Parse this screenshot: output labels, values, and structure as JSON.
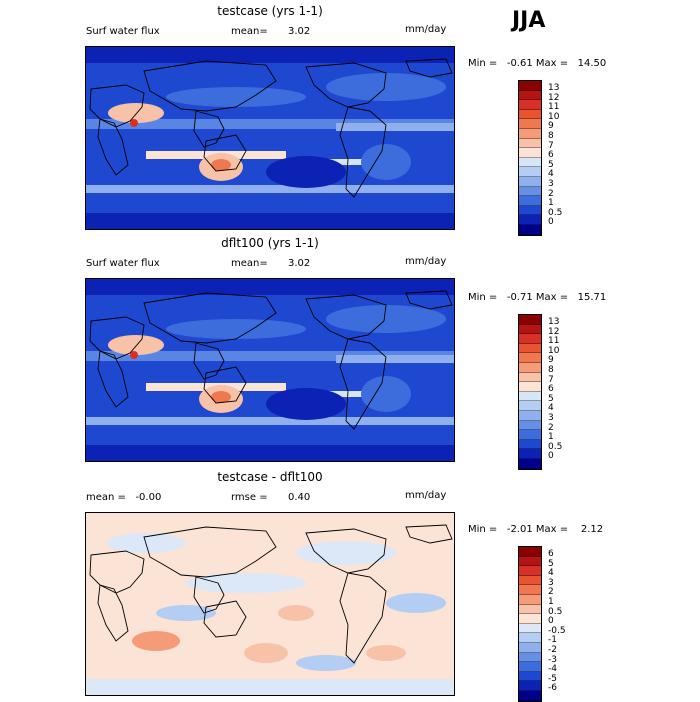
{
  "season": "JJA",
  "panels": [
    {
      "title": "testcase (yrs 1-1)",
      "variable": "Surf water flux",
      "mean_label": "mean=",
      "mean_value": "3.02",
      "units": "mm/day",
      "minmax": "Min =   -0.61 Max =   14.50",
      "colorbar": {
        "labels": [
          "13",
          "12",
          "11",
          "10",
          "9",
          "8",
          "7",
          "6",
          "5",
          "4",
          "3",
          "2",
          "1",
          "0.5",
          "0"
        ],
        "colors": [
          "#8b0000",
          "#b41414",
          "#d73027",
          "#e8542f",
          "#f07850",
          "#f59b78",
          "#f8c2a8",
          "#fbe3d6",
          "#d6e6f7",
          "#b4cdf2",
          "#8fb0ec",
          "#6690e6",
          "#3d6ddc",
          "#1f48d0",
          "#0b22b4",
          "#00008b"
        ]
      },
      "map_field": "wet"
    },
    {
      "title": "dflt100 (yrs 1-1)",
      "variable": "Surf water flux",
      "mean_label": "mean=",
      "mean_value": "3.02",
      "units": "mm/day",
      "minmax": "Min =   -0.71 Max =   15.71",
      "colorbar": {
        "labels": [
          "13",
          "12",
          "11",
          "10",
          "9",
          "8",
          "7",
          "6",
          "5",
          "4",
          "3",
          "2",
          "1",
          "0.5",
          "0"
        ],
        "colors": [
          "#8b0000",
          "#b41414",
          "#d73027",
          "#e8542f",
          "#f07850",
          "#f59b78",
          "#f8c2a8",
          "#fbe3d6",
          "#d6e6f7",
          "#b4cdf2",
          "#8fb0ec",
          "#6690e6",
          "#3d6ddc",
          "#1f48d0",
          "#0b22b4",
          "#00008b"
        ]
      },
      "map_field": "wet"
    },
    {
      "title": "testcase - dflt100",
      "variable": "mean =   -0.00",
      "mean_label": "rmse =",
      "mean_value": "0.40",
      "units": "mm/day",
      "minmax": "Min =   -2.01 Max =    2.12",
      "colorbar": {
        "labels": [
          "6",
          "5",
          "4",
          "3",
          "2",
          "1",
          "0.5",
          "0",
          "-0.5",
          "-1",
          "-2",
          "-3",
          "-4",
          "-5",
          "-6"
        ],
        "colors": [
          "#8b0000",
          "#b41414",
          "#d73027",
          "#e8542f",
          "#f07850",
          "#f59b78",
          "#f8c2a8",
          "#fbe3d6",
          "#dce8f7",
          "#b4cdf2",
          "#8fb0ec",
          "#6690e6",
          "#3d6ddc",
          "#1f48d0",
          "#0b22b4",
          "#00008b"
        ]
      },
      "map_field": "diff"
    }
  ]
}
